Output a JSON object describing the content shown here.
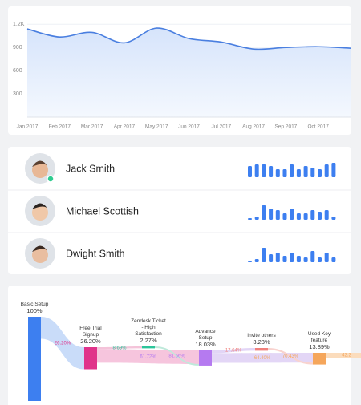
{
  "chart_data": [
    {
      "type": "line",
      "categories": [
        "Jan 2017",
        "Feb 2017",
        "Mar 2017",
        "Apr 2017",
        "May 2017",
        "Jun 2017",
        "Jul 2017",
        "Aug 2017",
        "Sep 2017",
        "Oct 2017",
        null
      ],
      "series": [
        {
          "color": "#4a7fe0",
          "values": [
            1140,
            1035,
            1095,
            960,
            1150,
            1015,
            970,
            880,
            900,
            910,
            890
          ]
        }
      ],
      "ylim": [
        0,
        1400
      ],
      "yticks": [
        300,
        600,
        900,
        {
          "value": 1200,
          "label": "1.2K"
        }
      ],
      "grid": true
    }
  ],
  "users": [
    {
      "name": "Jack Smith",
      "online": true,
      "activity": [
        14,
        16,
        16,
        14,
        10,
        10,
        16,
        10,
        14,
        12,
        10,
        16,
        18
      ]
    },
    {
      "name": "Michael Scottish",
      "online": false,
      "activity": [
        2,
        4,
        18,
        14,
        12,
        8,
        14,
        8,
        8,
        12,
        10,
        12,
        4
      ]
    },
    {
      "name": "Dwight Smith",
      "online": false,
      "activity": [
        2,
        4,
        18,
        10,
        12,
        8,
        12,
        8,
        6,
        14,
        6,
        12,
        6
      ]
    }
  ],
  "funnel": {
    "stages": [
      {
        "name": "Basic Setup",
        "value": 100,
        "value_label": "100%",
        "color": "#3d7ff0"
      },
      {
        "name": "Free Trial Signup",
        "value": 26.2,
        "value_label": "26.20%",
        "color": "#e0338a"
      },
      {
        "name": "Zendesk Ticket - High Satisfaction",
        "value": 2.27,
        "value_label": "2.27%",
        "color": "#2cc59a"
      },
      {
        "name": "Advance Setup",
        "value": 18.03,
        "value_label": "18.03%",
        "color": "#b57af0"
      },
      {
        "name": "Invite others",
        "value": 3.23,
        "value_label": "3.23%",
        "color": "#f07f7a"
      },
      {
        "name": "Used Key feature",
        "value": 13.89,
        "value_label": "13.89%",
        "color": "#f5a65b"
      }
    ],
    "links": [
      {
        "source": 0,
        "target": 1,
        "value": 26.2,
        "value_label": "26.20%",
        "color": "#c9dcf9"
      },
      {
        "source": 1,
        "target": 2,
        "value": 8.69,
        "value_label": "8.69%",
        "color": "#f4c3d9"
      },
      {
        "source": 1,
        "target": 3,
        "value": 61.72,
        "value_label": "61.72%",
        "color": "#f6c5dd"
      },
      {
        "source": 2,
        "target": 3,
        "value": 81.56,
        "value_label": "81.56%",
        "color": "#bfe9da"
      },
      {
        "source": 3,
        "target": 4,
        "value": 17.64,
        "value_label": "17.64%",
        "color": "#e2d5f6"
      },
      {
        "source": 3,
        "target": 5,
        "value": 64.4,
        "value_label": "64.40%",
        "color": "#e3d6f6"
      },
      {
        "source": 4,
        "target": 5,
        "value": 70.43,
        "value_label": "70.43%",
        "color": "#f8d3cf"
      },
      {
        "source": 5,
        "target": null,
        "value": 42.2,
        "color": "#fbdcbc"
      }
    ]
  }
}
